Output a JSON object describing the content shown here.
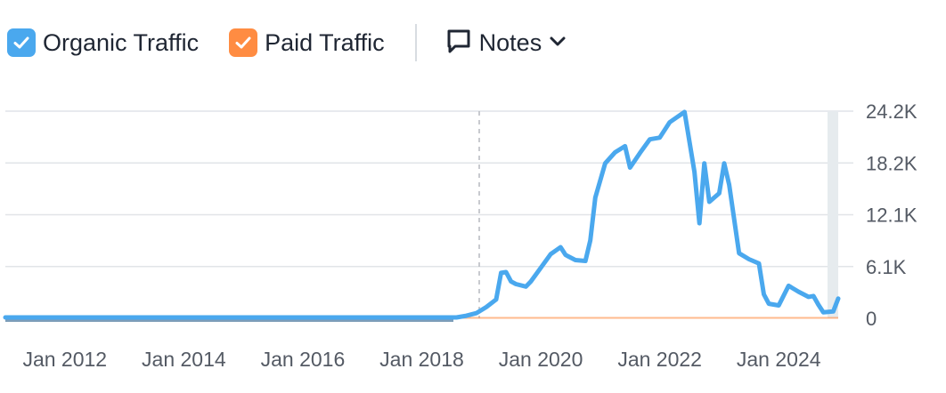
{
  "legend": {
    "organic": {
      "label": "Organic Traffic",
      "color": "#4aa8ee",
      "checked": true
    },
    "paid": {
      "label": "Paid Traffic",
      "color": "#ff8c42",
      "checked": true
    },
    "notes_label": "Notes",
    "icons": [
      "check-icon",
      "comment-icon",
      "chevron-down-icon"
    ]
  },
  "chart_data": {
    "type": "line",
    "y_ticks": [
      "0",
      "6.1K",
      "12.1K",
      "18.2K",
      "24.2K"
    ],
    "x_ticks": [
      "Jan 2012",
      "Jan 2014",
      "Jan 2016",
      "Jan 2018",
      "Jan 2020",
      "Jan 2022",
      "Jan 2024"
    ],
    "ylim": [
      0,
      24200
    ],
    "grid": true,
    "marker_date": "2019-03",
    "series": [
      {
        "name": "Organic Traffic",
        "color": "#4aa8ee",
        "points": [
          [
            "2011-01",
            0
          ],
          [
            "2018-03",
            0
          ],
          [
            "2018-08",
            0
          ],
          [
            "2018-10",
            200
          ],
          [
            "2018-12",
            500
          ],
          [
            "2019-02",
            1200
          ],
          [
            "2019-04",
            2100
          ],
          [
            "2019-05",
            5200
          ],
          [
            "2019-06",
            5300
          ],
          [
            "2019-07",
            4200
          ],
          [
            "2019-08",
            3900
          ],
          [
            "2019-10",
            3600
          ],
          [
            "2019-11",
            4200
          ],
          [
            "2020-01",
            5800
          ],
          [
            "2020-03",
            7400
          ],
          [
            "2020-05",
            8200
          ],
          [
            "2020-06",
            7300
          ],
          [
            "2020-08",
            6700
          ],
          [
            "2020-10",
            6600
          ],
          [
            "2020-11",
            9000
          ],
          [
            "2020-12",
            14000
          ],
          [
            "2021-02",
            18000
          ],
          [
            "2021-04",
            19300
          ],
          [
            "2021-06",
            20000
          ],
          [
            "2021-07",
            17500
          ],
          [
            "2021-09",
            19200
          ],
          [
            "2021-11",
            20800
          ],
          [
            "2022-01",
            21000
          ],
          [
            "2022-03",
            22800
          ],
          [
            "2022-06",
            24000
          ],
          [
            "2022-08",
            17000
          ],
          [
            "2022-09",
            11000
          ],
          [
            "2022-10",
            18000
          ],
          [
            "2022-11",
            13500
          ],
          [
            "2023-01",
            14500
          ],
          [
            "2023-02",
            18000
          ],
          [
            "2023-03",
            15500
          ],
          [
            "2023-05",
            7500
          ],
          [
            "2023-07",
            6800
          ],
          [
            "2023-09",
            6300
          ],
          [
            "2023-10",
            2700
          ],
          [
            "2023-11",
            1600
          ],
          [
            "2024-01",
            1400
          ],
          [
            "2024-03",
            3700
          ],
          [
            "2024-05",
            3000
          ],
          [
            "2024-07",
            2400
          ],
          [
            "2024-08",
            2500
          ],
          [
            "2024-09",
            1500
          ],
          [
            "2024-10",
            600
          ],
          [
            "2024-12",
            700
          ],
          [
            "2025-01",
            2200
          ]
        ]
      },
      {
        "name": "Paid Traffic",
        "color": "#ff8c42",
        "points": [
          [
            "2018-07",
            0
          ],
          [
            "2025-01",
            0
          ]
        ]
      }
    ]
  }
}
